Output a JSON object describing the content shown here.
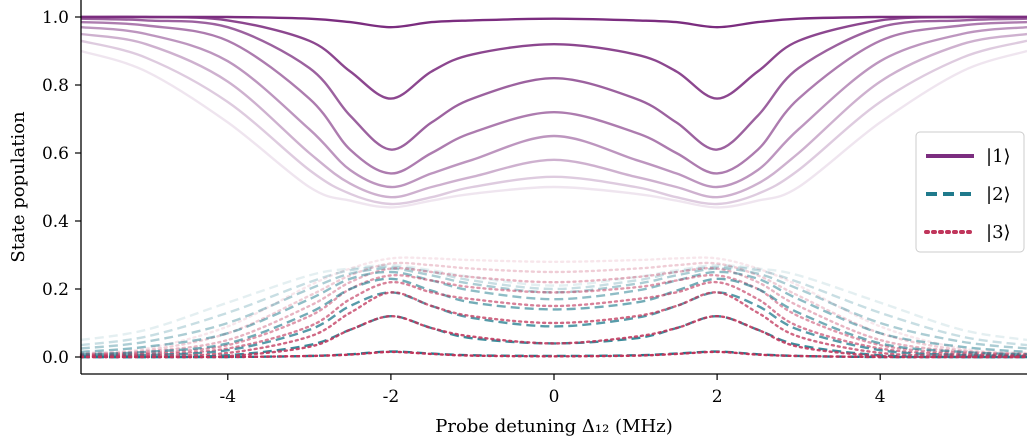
{
  "chart_data": {
    "type": "line",
    "xlabel": "Probe detuning Δ₁₂ (MHz)",
    "ylabel": "State population",
    "xlim": [
      -5.8,
      5.8
    ],
    "ylim": [
      -0.05,
      1.05
    ],
    "xticks": [
      -4,
      -2,
      0,
      2,
      4
    ],
    "xtick_labels": [
      "-4",
      "-2",
      "0",
      "2",
      "4"
    ],
    "yticks": [
      0.0,
      0.2,
      0.4,
      0.6,
      0.8,
      1.0
    ],
    "ytick_labels": [
      "0.0",
      "0.2",
      "0.4",
      "0.6",
      "0.8",
      "1.0"
    ],
    "grid": false,
    "legend_position": "center-right",
    "legend": [
      {
        "label": "|1⟩",
        "style": "solid",
        "color": "#7b2d7f"
      },
      {
        "label": "|2⟩",
        "style": "dashed",
        "color": "#1f7a8c"
      },
      {
        "label": "|3⟩",
        "style": "dotted",
        "color": "#c0355b"
      }
    ],
    "x": [
      -5.8,
      -5,
      -4,
      -3,
      -2.5,
      -2,
      -1.5,
      -1,
      0,
      1,
      1.5,
      2,
      2.5,
      3,
      4,
      5,
      5.8
    ],
    "series": [
      {
        "state": "1",
        "values": [
          1.0,
          1.0,
          1.0,
          0.995,
          0.985,
          0.97,
          0.985,
          0.99,
          0.995,
          0.99,
          0.985,
          0.97,
          0.985,
          0.995,
          1.0,
          1.0,
          1.0
        ]
      },
      {
        "state": "1",
        "values": [
          1.0,
          1.0,
          0.99,
          0.93,
          0.84,
          0.76,
          0.84,
          0.89,
          0.92,
          0.89,
          0.84,
          0.76,
          0.84,
          0.93,
          0.99,
          1.0,
          1.0
        ]
      },
      {
        "state": "1",
        "values": [
          0.995,
          0.99,
          0.97,
          0.85,
          0.71,
          0.61,
          0.69,
          0.76,
          0.82,
          0.76,
          0.69,
          0.61,
          0.71,
          0.85,
          0.97,
          0.99,
          0.995
        ]
      },
      {
        "state": "1",
        "values": [
          0.985,
          0.975,
          0.93,
          0.76,
          0.61,
          0.54,
          0.6,
          0.66,
          0.72,
          0.66,
          0.6,
          0.54,
          0.61,
          0.76,
          0.93,
          0.975,
          0.985
        ]
      },
      {
        "state": "1",
        "values": [
          0.97,
          0.95,
          0.87,
          0.67,
          0.55,
          0.5,
          0.54,
          0.58,
          0.65,
          0.58,
          0.54,
          0.5,
          0.55,
          0.67,
          0.87,
          0.95,
          0.97
        ]
      },
      {
        "state": "1",
        "values": [
          0.95,
          0.92,
          0.81,
          0.6,
          0.51,
          0.47,
          0.5,
          0.53,
          0.58,
          0.53,
          0.5,
          0.47,
          0.51,
          0.6,
          0.81,
          0.92,
          0.95
        ]
      },
      {
        "state": "1",
        "values": [
          0.93,
          0.88,
          0.75,
          0.55,
          0.48,
          0.45,
          0.47,
          0.5,
          0.53,
          0.5,
          0.47,
          0.45,
          0.48,
          0.55,
          0.75,
          0.88,
          0.93
        ]
      },
      {
        "state": "1",
        "values": [
          0.9,
          0.84,
          0.69,
          0.5,
          0.46,
          0.44,
          0.46,
          0.48,
          0.5,
          0.48,
          0.46,
          0.44,
          0.46,
          0.5,
          0.69,
          0.84,
          0.9
        ]
      },
      {
        "state": "2",
        "values": [
          0.0,
          0.0,
          0.0,
          0.003,
          0.008,
          0.016,
          0.01,
          0.005,
          0.003,
          0.005,
          0.01,
          0.016,
          0.008,
          0.003,
          0.0,
          0.0,
          0.0
        ]
      },
      {
        "state": "2",
        "values": [
          0.0,
          0.0,
          0.005,
          0.035,
          0.08,
          0.12,
          0.085,
          0.055,
          0.04,
          0.055,
          0.085,
          0.12,
          0.08,
          0.035,
          0.005,
          0.0,
          0.0
        ]
      },
      {
        "state": "2",
        "values": [
          0.003,
          0.006,
          0.02,
          0.08,
          0.15,
          0.19,
          0.15,
          0.115,
          0.09,
          0.115,
          0.15,
          0.19,
          0.15,
          0.08,
          0.02,
          0.006,
          0.003
        ]
      },
      {
        "state": "2",
        "values": [
          0.008,
          0.015,
          0.04,
          0.13,
          0.2,
          0.23,
          0.195,
          0.16,
          0.14,
          0.16,
          0.195,
          0.23,
          0.2,
          0.13,
          0.04,
          0.015,
          0.008
        ]
      },
      {
        "state": "2",
        "values": [
          0.015,
          0.03,
          0.07,
          0.17,
          0.23,
          0.25,
          0.225,
          0.195,
          0.17,
          0.195,
          0.225,
          0.25,
          0.23,
          0.17,
          0.07,
          0.03,
          0.015
        ]
      },
      {
        "state": "2",
        "values": [
          0.025,
          0.045,
          0.1,
          0.2,
          0.245,
          0.26,
          0.24,
          0.215,
          0.19,
          0.215,
          0.24,
          0.26,
          0.245,
          0.2,
          0.1,
          0.045,
          0.025
        ]
      },
      {
        "state": "2",
        "values": [
          0.035,
          0.06,
          0.13,
          0.22,
          0.255,
          0.265,
          0.25,
          0.225,
          0.2,
          0.225,
          0.25,
          0.265,
          0.255,
          0.22,
          0.13,
          0.06,
          0.035
        ]
      },
      {
        "state": "2",
        "values": [
          0.05,
          0.08,
          0.16,
          0.24,
          0.26,
          0.27,
          0.255,
          0.235,
          0.21,
          0.235,
          0.255,
          0.27,
          0.26,
          0.24,
          0.16,
          0.08,
          0.05
        ]
      },
      {
        "state": "3",
        "values": [
          0.0,
          0.0,
          0.0,
          0.003,
          0.007,
          0.015,
          0.009,
          0.004,
          0.002,
          0.004,
          0.009,
          0.015,
          0.007,
          0.003,
          0.0,
          0.0,
          0.0
        ]
      },
      {
        "state": "3",
        "values": [
          0.0,
          0.0,
          0.003,
          0.03,
          0.08,
          0.12,
          0.085,
          0.06,
          0.04,
          0.06,
          0.085,
          0.12,
          0.08,
          0.03,
          0.003,
          0.0,
          0.0
        ]
      },
      {
        "state": "3",
        "values": [
          0.002,
          0.004,
          0.012,
          0.06,
          0.13,
          0.19,
          0.15,
          0.12,
          0.1,
          0.12,
          0.15,
          0.19,
          0.13,
          0.06,
          0.012,
          0.004,
          0.002
        ]
      },
      {
        "state": "3",
        "values": [
          0.004,
          0.008,
          0.025,
          0.09,
          0.17,
          0.22,
          0.19,
          0.17,
          0.15,
          0.17,
          0.19,
          0.22,
          0.17,
          0.09,
          0.025,
          0.008,
          0.004
        ]
      },
      {
        "state": "3",
        "values": [
          0.006,
          0.012,
          0.035,
          0.12,
          0.2,
          0.24,
          0.225,
          0.205,
          0.19,
          0.205,
          0.225,
          0.24,
          0.2,
          0.12,
          0.035,
          0.012,
          0.006
        ]
      },
      {
        "state": "3",
        "values": [
          0.008,
          0.016,
          0.05,
          0.15,
          0.22,
          0.26,
          0.25,
          0.235,
          0.22,
          0.235,
          0.25,
          0.26,
          0.22,
          0.15,
          0.05,
          0.016,
          0.008
        ]
      },
      {
        "state": "3",
        "values": [
          0.01,
          0.02,
          0.07,
          0.18,
          0.24,
          0.275,
          0.27,
          0.26,
          0.25,
          0.26,
          0.27,
          0.275,
          0.24,
          0.18,
          0.07,
          0.02,
          0.01
        ]
      },
      {
        "state": "3",
        "values": [
          0.012,
          0.025,
          0.09,
          0.21,
          0.26,
          0.29,
          0.29,
          0.285,
          0.28,
          0.285,
          0.29,
          0.29,
          0.26,
          0.21,
          0.09,
          0.025,
          0.012
        ]
      }
    ],
    "colors": {
      "1": "#7b2d7f",
      "2": "#1f7a8c",
      "3": "#c0355b"
    }
  }
}
